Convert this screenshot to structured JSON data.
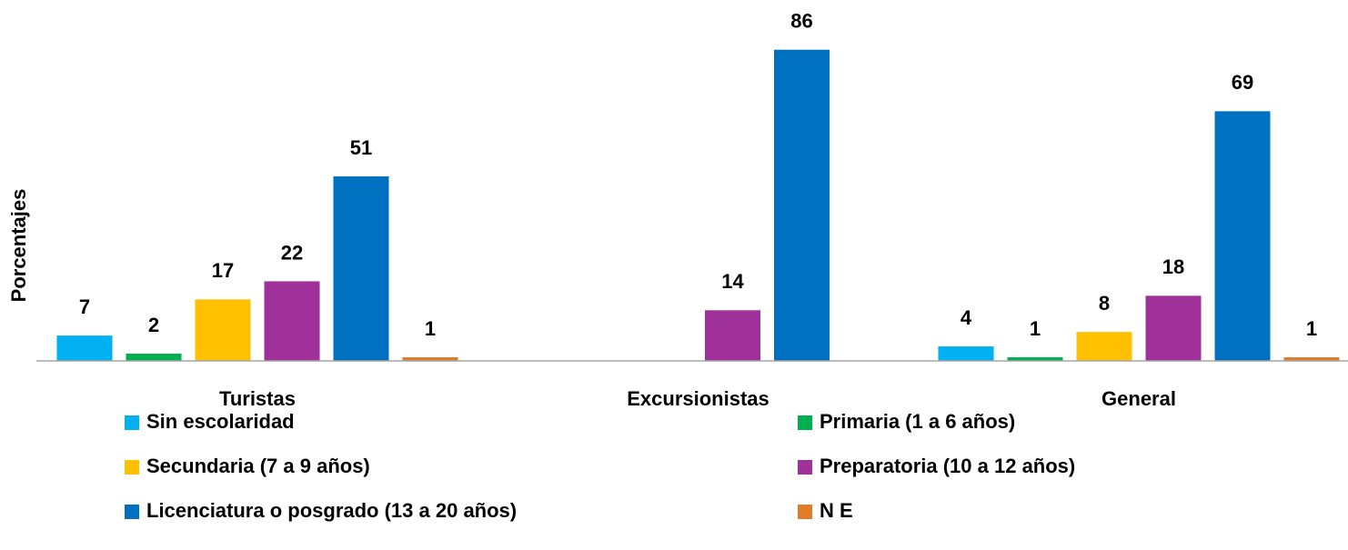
{
  "chart_data": {
    "type": "bar",
    "y_label": "Porcentajes",
    "categories": [
      "Turistas",
      "Excursionistas",
      "General"
    ],
    "series": [
      {
        "name": "Sin escolaridad",
        "color": "#00b0f0",
        "values": [
          7,
          null,
          4
        ]
      },
      {
        "name": "Primaria (1 a 6 años)",
        "color": "#00b050",
        "values": [
          2,
          null,
          1
        ]
      },
      {
        "name": "Secundaria (7 a 9 años)",
        "color": "#ffc000",
        "values": [
          17,
          null,
          8
        ]
      },
      {
        "name": "Preparatoria (10 a 12 años)",
        "color": "#a0309a",
        "values": [
          22,
          14,
          18
        ]
      },
      {
        "name": "Licenciatura o posgrado (13 a 20 años)",
        "color": "#0070c0",
        "values": [
          51,
          86,
          69
        ]
      },
      {
        "name": "N E",
        "color": "#e07b28",
        "values": [
          1,
          null,
          1
        ]
      }
    ],
    "ylim": [
      0,
      100
    ]
  }
}
